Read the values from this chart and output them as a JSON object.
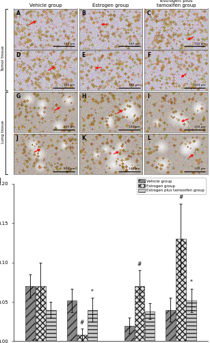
{
  "groups": [
    "Vehicle group",
    "Estrogen group",
    "Estrogen plus tamoxifen group"
  ],
  "bar_values": {
    "tumor_male": [
      0.07,
      0.07,
      0.04
    ],
    "tumor_female": [
      0.052,
      0.008,
      0.04
    ],
    "lung_male": [
      0.02,
      0.07,
      0.038
    ],
    "lung_female": [
      0.04,
      0.13,
      0.052
    ]
  },
  "bar_errors": {
    "tumor_male": [
      0.015,
      0.03,
      0.01
    ],
    "tumor_female": [
      0.015,
      0.008,
      0.015
    ],
    "lung_male": [
      0.01,
      0.02,
      0.01
    ],
    "lung_female": [
      0.015,
      0.045,
      0.015
    ]
  },
  "ylim": [
    0,
    0.2
  ],
  "yticks": [
    0.0,
    0.05,
    0.1,
    0.15,
    0.2
  ],
  "bar_width": 0.18,
  "background_color": "#ffffff",
  "col_headers": [
    "Vehicle group",
    "Estrogen group",
    "Estrogen plus\ntamoxifen group"
  ],
  "panel_labels": [
    "A",
    "B",
    "C",
    "D",
    "E",
    "F",
    "G",
    "H",
    "I",
    "J",
    "K",
    "L"
  ],
  "row_side_labels": [
    "Tumor tissue",
    "Lung tissue"
  ]
}
